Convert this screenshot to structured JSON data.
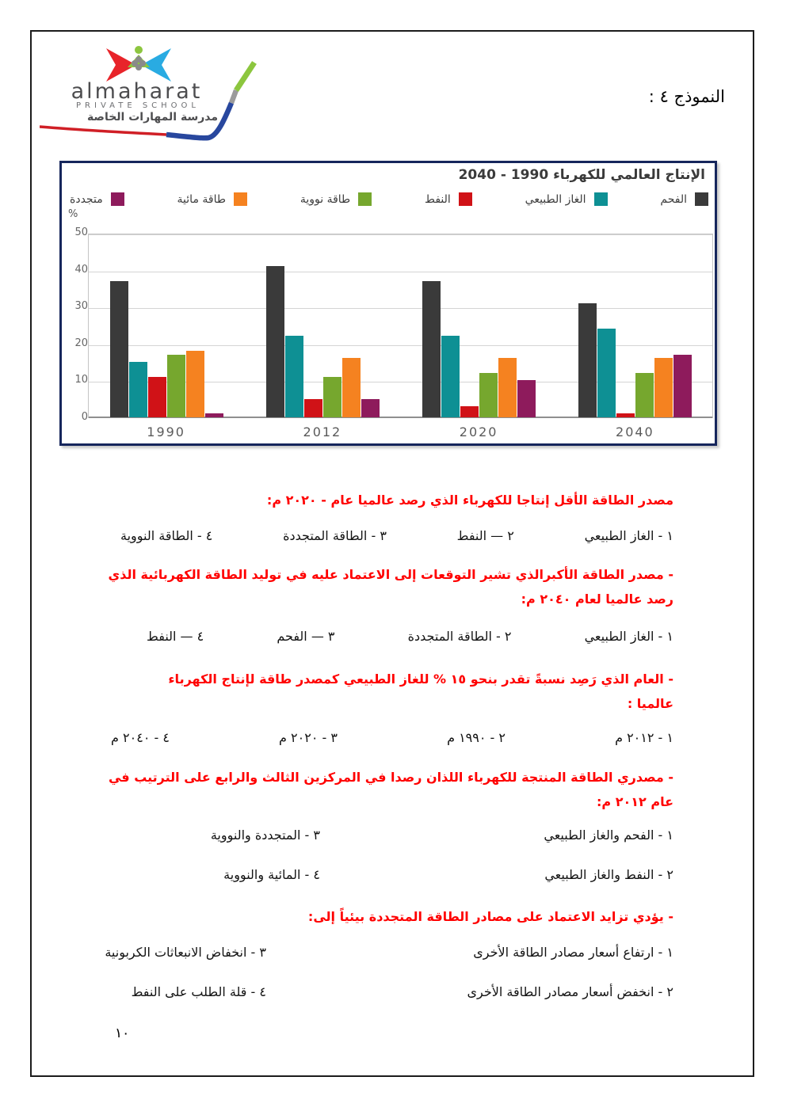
{
  "page": {
    "model_label": "النموذج ٤ :",
    "page_number": "١٠"
  },
  "logo": {
    "name": "almaharat",
    "subtitle": "PRIVATE SCHOOL",
    "arabic_name": "مدرسة المهارات الخاصة"
  },
  "chart_data": {
    "type": "bar",
    "title": "الإنتاج العالمي للكهرباء 1990 - 2040",
    "ylabel": "%",
    "ylim": [
      0,
      50
    ],
    "yticks": [
      0,
      10,
      20,
      30,
      40,
      50
    ],
    "categories": [
      "1990",
      "2012",
      "2020",
      "2040"
    ],
    "series": [
      {
        "name": "الفحم",
        "color": "#3a3a3a",
        "values": [
          37,
          41,
          37,
          31
        ]
      },
      {
        "name": "الغاز الطبيعي",
        "color": "#0e9094",
        "values": [
          15,
          22,
          22,
          24
        ]
      },
      {
        "name": "النفط",
        "color": "#d01217",
        "values": [
          11,
          5,
          3,
          1
        ]
      },
      {
        "name": "طاقة نووية",
        "color": "#76a72e",
        "values": [
          17,
          11,
          12,
          12
        ]
      },
      {
        "name": "طاقة مائية",
        "color": "#f58220",
        "values": [
          18,
          16,
          16,
          16
        ]
      },
      {
        "name": "متجددة",
        "color": "#8e1b5c",
        "values": [
          1,
          5,
          10,
          17
        ]
      }
    ],
    "legend_position": "top",
    "grid": true
  },
  "questions": [
    {
      "heading": "مصدر الطاقة الأقل إنتاجا للكهرباء الذي رصد عالميا عام - ٢٠٢٠ م:",
      "layout": "row",
      "options": [
        "١ - الغاز الطبيعي",
        "٢ — النفط",
        "٣ - الطاقة المتجددة",
        "٤ - الطاقة النووية"
      ]
    },
    {
      "heading": "- مصدر الطاقة الأكبرالذي تشير التوقعات إلى الاعتماد عليه في توليد الطاقة الكهربائية الذي\nرصد عالميا لعام ٢٠٤٠ م:",
      "layout": "row",
      "options": [
        "١ - الغاز الطبيعي",
        "٢ - الطاقة المتجددة",
        "٣ — الفحم",
        "٤ — النفط"
      ]
    },
    {
      "heading": "- العام الذي رَصِد نسبةً تقدر بنحو ١٥ % للغاز الطبيعي كمصدر طاقة لإنتاج الكهرباء\nعالميا :",
      "layout": "row",
      "options": [
        "١ - ٢٠١٢ م",
        "٢ - ١٩٩٠ م",
        "٣ - ٢٠٢٠ م",
        "٤ - ٢٠٤٠ م"
      ]
    },
    {
      "heading": "- مصدري الطاقة المنتجة للكهرباء اللذان رصدا في المركزين الثالث والرابع على الترتيب في\nعام ٢٠١٢ م:",
      "layout": "pairs",
      "options": [
        "١ - الفحم والغاز الطبيعي",
        "٢ - النفط والغاز الطبيعي",
        "٣ - المتجددة والنووية",
        "٤ - المائية والنووية"
      ]
    },
    {
      "heading": "- يؤدي تزايد الاعتماد على مصادر الطاقة المتجددة بيئياً إلى:",
      "layout": "pairs",
      "options": [
        "١ - ارتفاع أسعار مصادر الطاقة الأخرى",
        "٢ - انخفض أسعار مصادر الطاقة الأخرى",
        "٣ - انخفاض الانبعاثات الكربونية",
        "٤ - قلة الطلب على النفط"
      ]
    }
  ]
}
